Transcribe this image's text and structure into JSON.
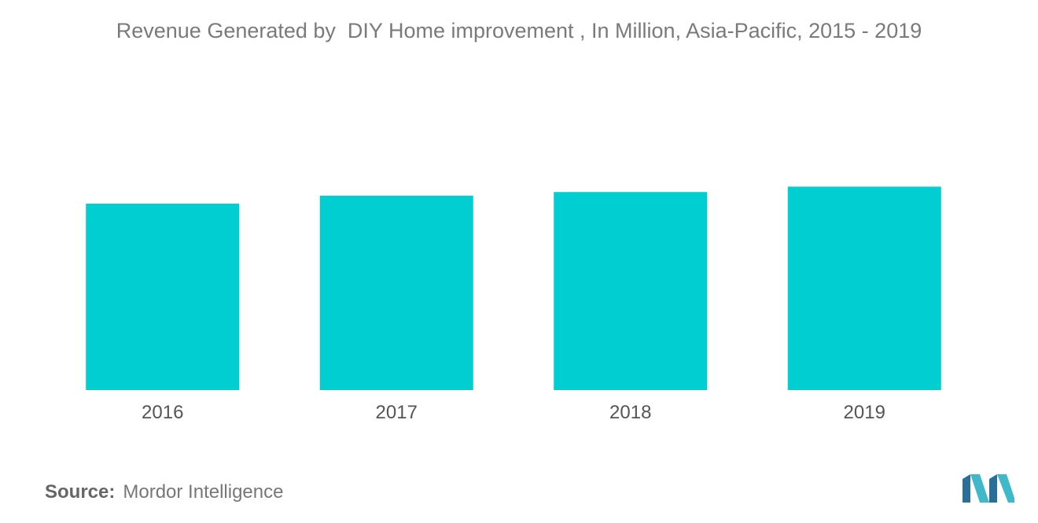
{
  "chart_data": {
    "type": "bar",
    "title": "Revenue Generated by  DIY Home improvement , In Million, Asia-Pacific, 2015 - 2019",
    "categories": [
      "2016",
      "2017",
      "2018",
      "2019"
    ],
    "values": [
      208,
      217,
      221,
      227
    ],
    "xlabel": "",
    "ylabel": "",
    "ylim": [
      0,
      330
    ],
    "grid": false,
    "legend": "none",
    "bar_color": "#00ced1"
  },
  "source": {
    "label": "Source:",
    "text": "Mordor Intelligence"
  },
  "logo": {
    "icon": "mordor-intelligence-logo",
    "color_dark": "#2a6f97",
    "color_light": "#3fb8c9"
  }
}
